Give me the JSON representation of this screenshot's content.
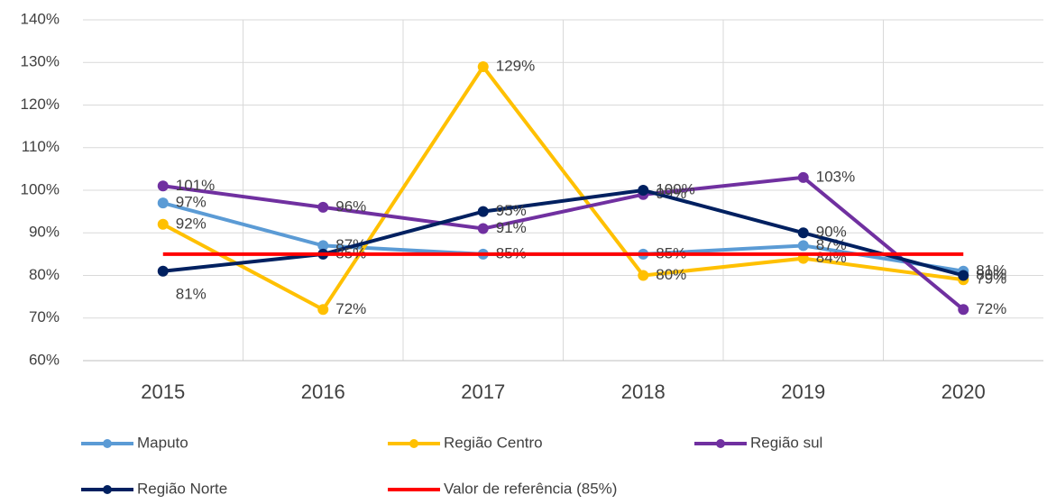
{
  "chart_data": {
    "type": "line",
    "categories": [
      "2015",
      "2016",
      "2017",
      "2018",
      "2019",
      "2020"
    ],
    "ylim": [
      60,
      140
    ],
    "yticks": [
      {
        "value": 60,
        "label": "60%"
      },
      {
        "value": 70,
        "label": "70%"
      },
      {
        "value": 80,
        "label": "80%"
      },
      {
        "value": 90,
        "label": "90%"
      },
      {
        "value": 100,
        "label": "100%"
      },
      {
        "value": 110,
        "label": "110%"
      },
      {
        "value": 120,
        "label": "120%"
      },
      {
        "value": 130,
        "label": "130%"
      },
      {
        "value": 140,
        "label": "140%"
      }
    ],
    "grid": true,
    "legend": "bottom",
    "series": [
      {
        "name": "Maputo",
        "color": "#5b9bd5",
        "values": [
          97,
          87,
          85,
          85,
          87,
          81
        ],
        "value_labels": [
          "97%",
          "87%",
          "85%",
          "85%",
          "87%",
          "81%"
        ]
      },
      {
        "name": "Região Centro",
        "color": "#ffc000",
        "values": [
          92,
          72,
          129,
          80,
          84,
          79
        ],
        "value_labels": [
          "92%",
          "72%",
          "129%",
          "80%",
          "84%",
          "79%"
        ]
      },
      {
        "name": "Região sul",
        "color": "#7030a0",
        "values": [
          101,
          96,
          91,
          99,
          103,
          72
        ],
        "value_labels": [
          "101%",
          "96%",
          "91%",
          "99%",
          "103%",
          "72%"
        ]
      },
      {
        "name": "Região Norte",
        "color": "#002060",
        "values": [
          81,
          85,
          95,
          100,
          90,
          80
        ],
        "value_labels": [
          "81%",
          "85%",
          "95%",
          "100%",
          "90%",
          "80%"
        ]
      },
      {
        "name": "Valor de referência (85%)",
        "color": "#ff0000",
        "values": [
          85,
          85,
          85,
          85,
          85,
          85
        ]
      }
    ]
  }
}
